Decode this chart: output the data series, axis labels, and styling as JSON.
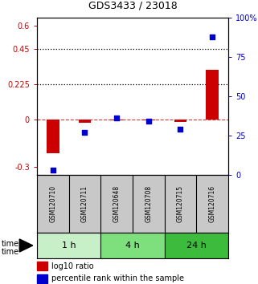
{
  "title": "GDS3433 / 23018",
  "samples": [
    "GSM120710",
    "GSM120711",
    "GSM120648",
    "GSM120708",
    "GSM120715",
    "GSM120716"
  ],
  "log10_ratio": [
    -0.21,
    -0.02,
    -0.005,
    -0.003,
    -0.012,
    0.32
  ],
  "percentile_rank": [
    3,
    27,
    36,
    34,
    29,
    88
  ],
  "time_groups": [
    {
      "label": "1 h",
      "color_idx": 0
    },
    {
      "label": "4 h",
      "color_idx": 1
    },
    {
      "label": "24 h",
      "color_idx": 2
    }
  ],
  "group_sizes": [
    2,
    2,
    2
  ],
  "time_colors": [
    "#c8f0c8",
    "#7de07d",
    "#3dbb3d"
  ],
  "ylim_left": [
    -0.35,
    0.65
  ],
  "ylim_right": [
    0,
    100
  ],
  "yticks_left": [
    -0.3,
    0,
    0.225,
    0.45,
    0.6
  ],
  "yticks_right": [
    0,
    25,
    50,
    75,
    100
  ],
  "hlines": [
    0.225,
    0.45
  ],
  "bar_color": "#cc0000",
  "dot_color": "#0000cc",
  "sample_box_color": "#c8c8c8",
  "fig_bg": "#ffffff",
  "bar_width": 0.4
}
